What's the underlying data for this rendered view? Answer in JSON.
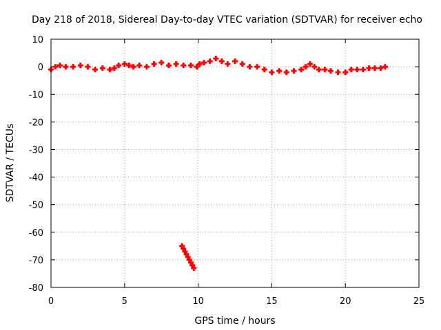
{
  "chart_data": {
    "type": "scatter",
    "title": "Day 218 of 2018, Sidereal Day-to-day VTEC variation (SDTVAR) for receiver echo",
    "xlabel": "GPS time / hours",
    "ylabel": "SDTVAR / TECUs",
    "xlim": [
      0,
      25
    ],
    "ylim": [
      -80,
      10
    ],
    "xticks": [
      0,
      5,
      10,
      15,
      20,
      25
    ],
    "yticks": [
      -80,
      -70,
      -60,
      -50,
      -40,
      -30,
      -20,
      -10,
      0,
      10
    ],
    "grid": true,
    "marker": "plus",
    "color": "#ff0000",
    "series": [
      {
        "name": "SDTVAR",
        "x": [
          0.0,
          0.3,
          0.6,
          1.0,
          1.5,
          2.0,
          2.5,
          3.0,
          3.5,
          4.0,
          4.3,
          4.6,
          5.0,
          5.3,
          5.6,
          6.0,
          6.5,
          7.0,
          7.5,
          8.0,
          8.5,
          9.0,
          9.5,
          9.9,
          10.1,
          10.4,
          10.8,
          11.2,
          11.6,
          12.0,
          12.5,
          13.0,
          13.5,
          14.0,
          14.5,
          15.0,
          15.5,
          16.0,
          16.5,
          17.0,
          17.3,
          17.6,
          17.9,
          18.2,
          18.6,
          19.0,
          19.5,
          20.0,
          20.4,
          20.8,
          21.2,
          21.6,
          22.0,
          22.4,
          22.7,
          8.9,
          9.0,
          9.1,
          9.2,
          9.3,
          9.4,
          9.5,
          9.6,
          9.7
        ],
        "y": [
          -1.0,
          0.0,
          0.5,
          0.0,
          0.0,
          0.5,
          0.0,
          -1.0,
          -0.5,
          -1.0,
          -0.5,
          0.5,
          1.0,
          0.5,
          0.0,
          0.5,
          0.0,
          1.0,
          1.5,
          0.5,
          1.0,
          0.5,
          0.5,
          0.0,
          1.0,
          1.5,
          2.0,
          3.0,
          2.0,
          1.0,
          2.0,
          1.0,
          0.0,
          0.0,
          -1.0,
          -2.0,
          -1.5,
          -2.0,
          -1.5,
          -1.0,
          0.0,
          1.0,
          0.0,
          -1.0,
          -1.0,
          -1.5,
          -2.0,
          -2.0,
          -1.0,
          -1.0,
          -1.0,
          -0.5,
          -0.5,
          -0.5,
          0.0,
          -65.0,
          -66.0,
          -67.0,
          -68.0,
          -69.0,
          -70.0,
          -71.0,
          -72.0,
          -73.0
        ]
      }
    ]
  }
}
